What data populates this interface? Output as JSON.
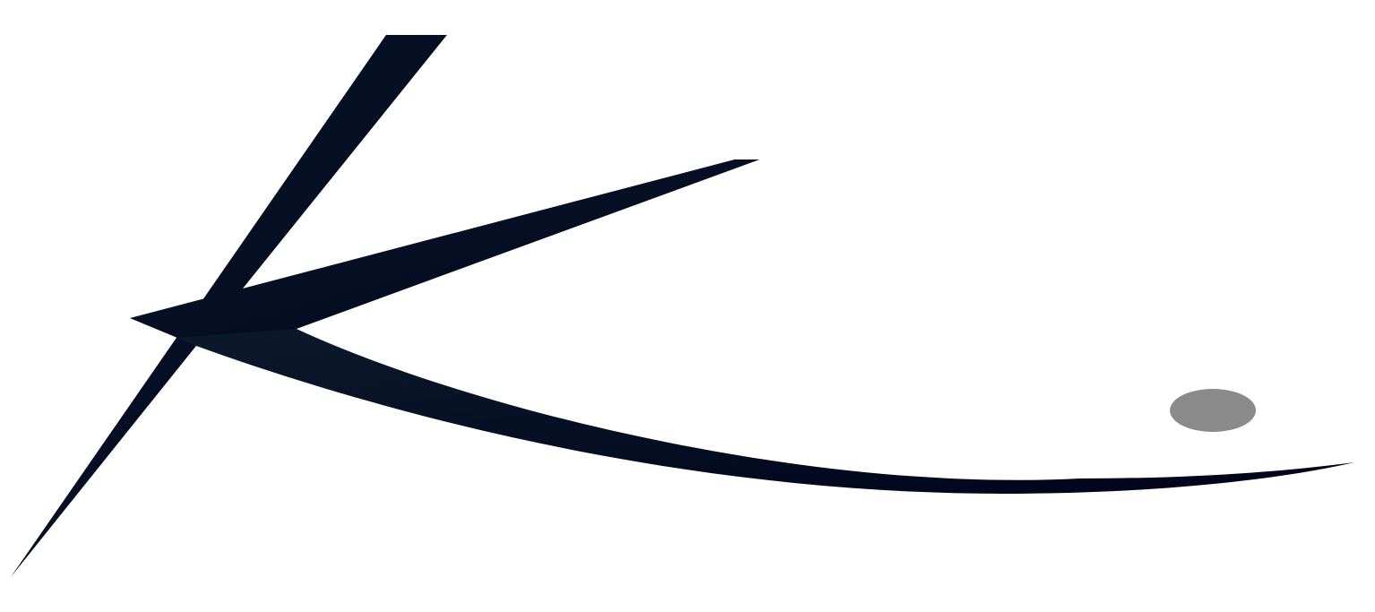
{
  "logo": {
    "name": "stylized-k-swoosh-logo",
    "colors": {
      "mark_dark": "#00031a",
      "mark_mid": "#0b1a2b",
      "dot": "#8a8a8a",
      "background": "#ffffff"
    }
  }
}
